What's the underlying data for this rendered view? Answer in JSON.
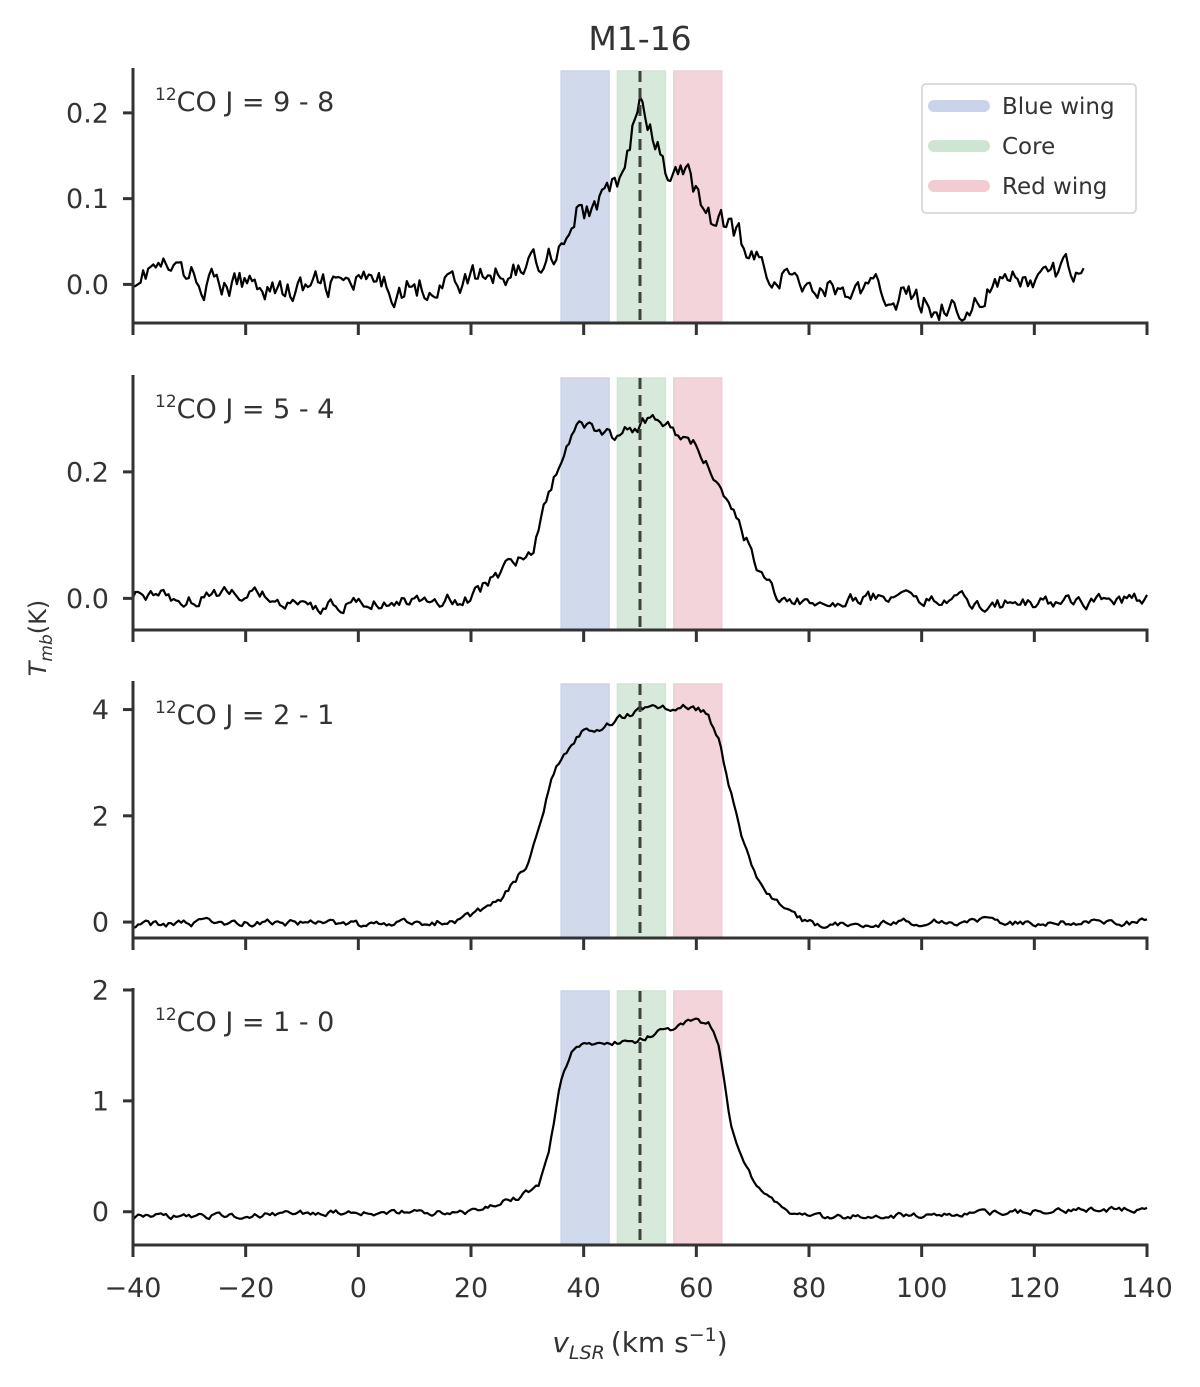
{
  "chart_data": {
    "type": "line",
    "title": "M1-16",
    "xlabel_var": "v",
    "xlabel_sub": "LSR",
    "xlabel_units_pre": "(km s",
    "xlabel_units_sup": "−1",
    "xlabel_units_post": ")",
    "ylabel_var": "T",
    "ylabel_sub": "mb",
    "ylabel_units": "(K)",
    "xlim": [
      -40,
      140
    ],
    "xticks": [
      -40,
      -20,
      0,
      20,
      40,
      60,
      80,
      100,
      120,
      140
    ],
    "xtick_labels": [
      "−40",
      "−20",
      "0",
      "20",
      "40",
      "60",
      "80",
      "100",
      "120",
      "140"
    ],
    "vline_x": 50,
    "bands": [
      {
        "name": "Blue wing",
        "from": 36,
        "to": 44.5,
        "color": "#c9d3ea"
      },
      {
        "name": "Core",
        "from": 46,
        "to": 54.5,
        "color": "#cfe5d3"
      },
      {
        "name": "Red wing",
        "from": 56,
        "to": 64.5,
        "color": "#f1cdd3"
      }
    ],
    "legend": {
      "position": "top-right",
      "entries": [
        "Blue wing",
        "Core",
        "Red wing"
      ]
    },
    "panels": [
      {
        "label_iso": "12",
        "label_text": "CO J = 9 - 8",
        "ylim": [
          -0.045,
          0.25
        ],
        "yticks": [
          0.0,
          0.1,
          0.2
        ],
        "ytick_labels": [
          "0.0",
          "0.1",
          "0.2"
        ],
        "x_end": 129,
        "noise": 0.012,
        "series": {
          "x": [
            -40,
            -36,
            -30,
            -24,
            -18,
            -12,
            -6,
            0,
            6,
            12,
            18,
            24,
            28,
            32,
            35,
            37,
            39,
            41,
            43,
            45,
            47,
            49,
            50,
            51,
            53,
            55,
            57,
            59,
            61,
            63,
            65,
            67,
            70,
            75,
            80,
            85,
            90,
            95,
            100,
            105,
            107,
            110,
            115,
            120,
            125,
            129
          ],
          "y": [
            0.01,
            0.02,
            0.01,
            -0.005,
            0.005,
            -0.01,
            0.0,
            0.0,
            -0.005,
            0.0,
            0.005,
            0.01,
            0.02,
            0.03,
            0.04,
            0.06,
            0.09,
            0.08,
            0.1,
            0.11,
            0.13,
            0.19,
            0.22,
            0.18,
            0.16,
            0.12,
            0.13,
            0.12,
            0.1,
            0.07,
            0.07,
            0.06,
            0.03,
            0.01,
            0.0,
            -0.005,
            -0.01,
            -0.01,
            -0.02,
            -0.025,
            -0.04,
            -0.01,
            0.0,
            0.005,
            0.01,
            0.03
          ]
        }
      },
      {
        "label_iso": "12",
        "label_text": "CO J = 5 - 4",
        "ylim": [
          -0.05,
          0.35
        ],
        "yticks": [
          0.0,
          0.2
        ],
        "ytick_labels": [
          "0.0",
          "0.2"
        ],
        "x_end": 140,
        "noise": 0.008,
        "series": {
          "x": [
            -40,
            -30,
            -20,
            -10,
            0,
            10,
            15,
            20,
            25,
            28,
            31,
            33,
            35,
            37,
            39,
            41,
            43,
            45,
            47,
            49,
            51,
            53,
            55,
            57,
            59,
            61,
            63,
            65,
            67,
            69,
            71,
            73,
            75,
            78,
            85,
            100,
            115,
            130,
            140
          ],
          "y": [
            0.01,
            0.0,
            0.01,
            -0.015,
            -0.01,
            -0.005,
            0.0,
            0.0,
            0.04,
            0.06,
            0.08,
            0.15,
            0.2,
            0.24,
            0.27,
            0.27,
            0.27,
            0.26,
            0.27,
            0.27,
            0.28,
            0.28,
            0.27,
            0.26,
            0.25,
            0.23,
            0.2,
            0.17,
            0.13,
            0.09,
            0.05,
            0.02,
            0.0,
            -0.005,
            0.0,
            0.0,
            -0.01,
            -0.005,
            0.0
          ]
        }
      },
      {
        "label_iso": "12",
        "label_text": "CO J = 2 - 1",
        "ylim": [
          -0.3,
          4.5
        ],
        "yticks": [
          0,
          2,
          4
        ],
        "ytick_labels": [
          "0",
          "2",
          "4"
        ],
        "x_end": 140,
        "noise": 0.05,
        "series": {
          "x": [
            -40,
            -20,
            0,
            15,
            20,
            25,
            28,
            30,
            32,
            34,
            36,
            38,
            40,
            42,
            44,
            46,
            48,
            50,
            52,
            54,
            56,
            58,
            60,
            62,
            64,
            66,
            68,
            70,
            72,
            75,
            78,
            82,
            100,
            140
          ],
          "y": [
            -0.05,
            0.0,
            -0.05,
            0.0,
            0.1,
            0.4,
            0.8,
            1.1,
            1.8,
            2.6,
            3.1,
            3.4,
            3.65,
            3.6,
            3.7,
            3.85,
            3.9,
            4.0,
            4.1,
            4.05,
            4.0,
            4.05,
            4.0,
            3.95,
            3.4,
            2.5,
            1.6,
            1.0,
            0.6,
            0.3,
            0.05,
            -0.05,
            0.0,
            0.0
          ]
        }
      },
      {
        "label_iso": "12",
        "label_text": "CO J = 1 - 0",
        "ylim": [
          -0.3,
          2.0
        ],
        "yticks": [
          0,
          1,
          2
        ],
        "ytick_labels": [
          "0",
          "1",
          "2"
        ],
        "x_end": 140,
        "noise": 0.02,
        "series": {
          "x": [
            -40,
            -20,
            0,
            20,
            28,
            32,
            34,
            36,
            38,
            40,
            42,
            44,
            46,
            48,
            50,
            52,
            54,
            56,
            58,
            60,
            62,
            63,
            64,
            65,
            66,
            68,
            70,
            72,
            75,
            78,
            82,
            100,
            140
          ],
          "y": [
            -0.05,
            -0.03,
            0.0,
            0.0,
            0.12,
            0.22,
            0.6,
            1.2,
            1.45,
            1.52,
            1.5,
            1.5,
            1.53,
            1.53,
            1.55,
            1.6,
            1.65,
            1.64,
            1.7,
            1.72,
            1.7,
            1.65,
            1.5,
            1.2,
            0.8,
            0.5,
            0.3,
            0.15,
            0.05,
            -0.03,
            -0.05,
            -0.03,
            0.03
          ]
        }
      }
    ]
  }
}
